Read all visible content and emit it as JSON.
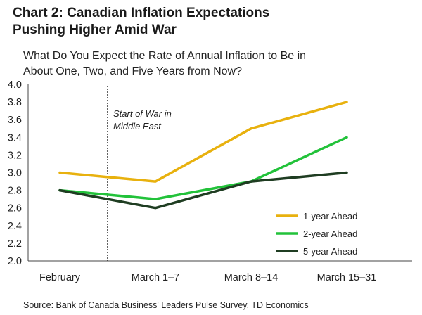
{
  "chart_data": {
    "type": "line",
    "title_lines": [
      "Chart 2: Canadian Inflation Expectations",
      "Pushing Higher Amid War"
    ],
    "subtitle_lines": [
      "What Do You Expect the Rate of Annual Inflation to Be in",
      "About One, Two, and Five Years from Now?"
    ],
    "categories": [
      "February",
      "March 1–7",
      "March 8–14",
      "March 15–31"
    ],
    "series": [
      {
        "name": "1-year Ahead",
        "color": "#e8b10e",
        "values": [
          3.0,
          2.9,
          3.5,
          3.8
        ]
      },
      {
        "name": "2-year Ahead",
        "color": "#22c23a",
        "values": [
          2.8,
          2.7,
          2.9,
          3.4
        ]
      },
      {
        "name": "5-year Ahead",
        "color": "#1f3d22",
        "values": [
          2.8,
          2.6,
          2.9,
          3.0
        ]
      }
    ],
    "ylim": [
      2.0,
      4.0
    ],
    "yticks": [
      "2.0",
      "2.2",
      "2.4",
      "2.6",
      "2.8",
      "3.0",
      "3.2",
      "3.4",
      "3.6",
      "3.8",
      "4.0"
    ],
    "annotation": {
      "lines": [
        "Start of War in",
        "Middle East"
      ],
      "between_categories": [
        0,
        1
      ]
    },
    "legend_position": "bottom-right",
    "source": "Source: Bank of Canada Business' Leaders Pulse Survey, TD Economics"
  }
}
